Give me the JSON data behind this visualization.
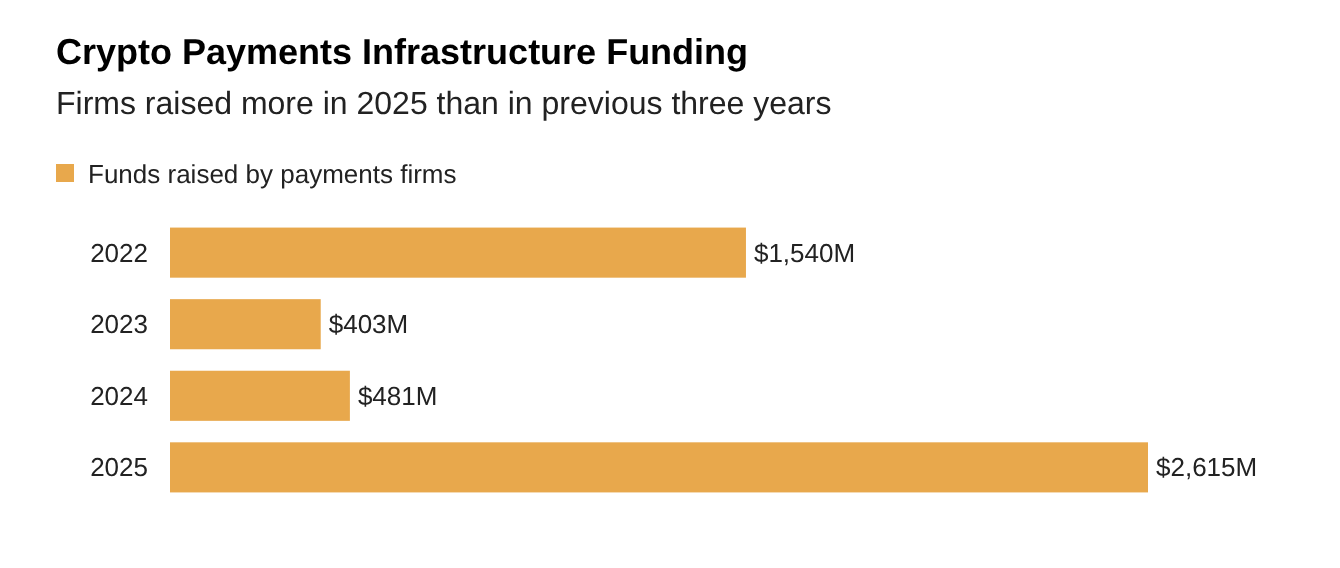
{
  "chart_data": {
    "type": "bar",
    "orientation": "horizontal",
    "title": "Crypto Payments Infrastructure Funding",
    "subtitle": "Firms raised more in 2025 than in previous three years",
    "categories": [
      "2022",
      "2023",
      "2024",
      "2025"
    ],
    "series": [
      {
        "name": "Funds raised by payments firms",
        "color": "#e8a84c",
        "values": [
          1540,
          403,
          481,
          2615
        ],
        "value_labels": [
          "$1,540M",
          "$403M",
          "$481M",
          "$2,615M"
        ]
      }
    ],
    "legend": "top left",
    "grid": false
  }
}
